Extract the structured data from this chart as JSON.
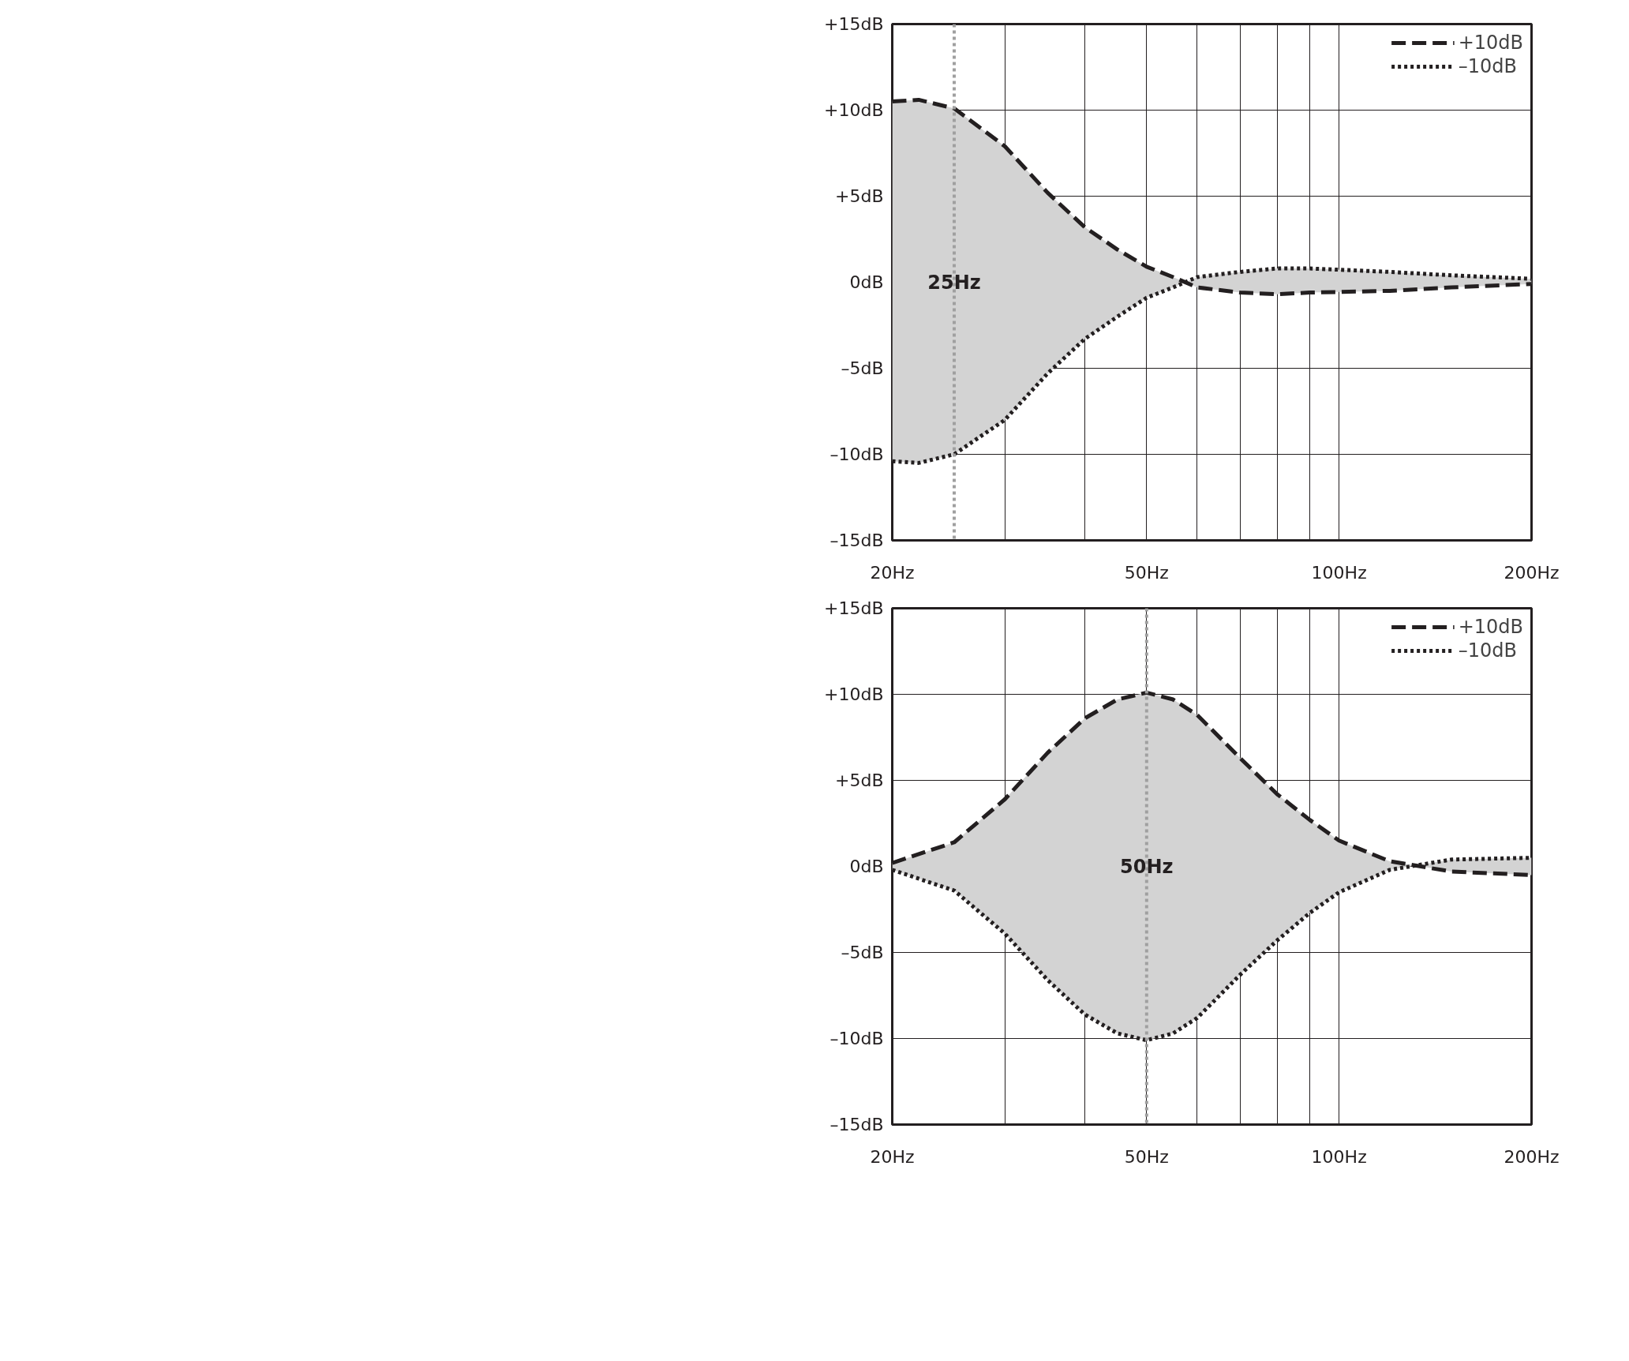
{
  "chart_data": [
    {
      "type": "line",
      "x": [
        20,
        22,
        25,
        30,
        35,
        40,
        45,
        50,
        55,
        60,
        70,
        80,
        90,
        120,
        150,
        200
      ],
      "series": [
        {
          "name": "+10dB",
          "color": "#231f20",
          "line_style": "dashed",
          "values": [
            10.5,
            10.6,
            10.1,
            7.9,
            5.2,
            3.2,
            1.9,
            0.9,
            0.3,
            -0.3,
            -0.6,
            -0.7,
            -0.6,
            -0.5,
            -0.3,
            -0.1
          ],
          "lower": [
            -10.4,
            -10.5,
            -10,
            -8,
            -5.3,
            -3.3,
            -2,
            -0.9,
            -0.3,
            0.3,
            0.6,
            0.8,
            0.8,
            0.6,
            0.4,
            0.2
          ],
          "upper": [
            10.5,
            10.6,
            10.1,
            7.9,
            5.2,
            3.2,
            1.9,
            0.9,
            0.3,
            -0.3,
            -0.6,
            -0.7,
            -0.6,
            -0.5,
            -0.3,
            -0.1
          ]
        },
        {
          "name": "–10dB",
          "color": "#231f20",
          "line_style": "dotted",
          "values": [
            -10.4,
            -10.5,
            -10,
            -8,
            -5.3,
            -3.3,
            -2,
            -0.9,
            -0.3,
            0.3,
            0.6,
            0.8,
            0.8,
            0.6,
            0.4,
            0.2
          ]
        }
      ],
      "log": "x",
      "xlim": [
        20,
        200
      ],
      "xticks": [
        {
          "value": 20,
          "label": "20Hz"
        },
        {
          "value": 30,
          "label": null
        },
        {
          "value": 40,
          "label": null
        },
        {
          "value": 50,
          "label": "50Hz"
        },
        {
          "value": 60,
          "label": null
        },
        {
          "value": 70,
          "label": null
        },
        {
          "value": 80,
          "label": null
        },
        {
          "value": 90,
          "label": null
        },
        {
          "value": 100,
          "label": "100Hz"
        },
        {
          "value": 200,
          "label": "200Hz"
        }
      ],
      "ylim": [
        -15,
        15
      ],
      "yticks": [
        {
          "value": 15,
          "label": "+15dB"
        },
        {
          "value": 10,
          "label": "+10dB"
        },
        {
          "value": 5,
          "label": "+5dB"
        },
        {
          "value": 0,
          "label": "0dB"
        },
        {
          "value": -5,
          "label": "–5dB"
        },
        {
          "value": -10,
          "label": "–10dB"
        },
        {
          "value": -15,
          "label": "–15dB"
        }
      ],
      "ref_lines": [
        {
          "axis": "x",
          "value": 25,
          "label": "25Hz",
          "color": "#a0a0a0",
          "line_style": "dotted"
        }
      ],
      "grid": true,
      "legend": "top right"
    },
    {
      "type": "line",
      "x": [
        20,
        25,
        30,
        35,
        40,
        45,
        50,
        55,
        60,
        70,
        80,
        90,
        100,
        120,
        150,
        200
      ],
      "series": [
        {
          "name": "+10dB",
          "color": "#231f20",
          "line_style": "dashed",
          "values": [
            0.2,
            1.4,
            3.9,
            6.6,
            8.6,
            9.7,
            10.1,
            9.7,
            8.8,
            6.3,
            4.2,
            2.7,
            1.5,
            0.3,
            -0.3,
            -0.5
          ],
          "lower": [
            -0.2,
            -1.4,
            -3.9,
            -6.6,
            -8.6,
            -9.7,
            -10.1,
            -9.7,
            -8.8,
            -6.3,
            -4.3,
            -2.7,
            -1.5,
            -0.2,
            0.4,
            0.5
          ],
          "upper": [
            0.2,
            1.4,
            3.9,
            6.6,
            8.6,
            9.7,
            10.1,
            9.7,
            8.8,
            6.3,
            4.2,
            2.7,
            1.5,
            0.3,
            -0.3,
            -0.5
          ]
        },
        {
          "name": "–10dB",
          "color": "#231f20",
          "line_style": "dotted",
          "values": [
            -0.2,
            -1.4,
            -3.9,
            -6.6,
            -8.6,
            -9.7,
            -10.1,
            -9.7,
            -8.8,
            -6.3,
            -4.3,
            -2.7,
            -1.5,
            -0.2,
            0.4,
            0.5
          ]
        }
      ],
      "log": "x",
      "xlim": [
        20,
        200
      ],
      "xticks": [
        {
          "value": 20,
          "label": "20Hz"
        },
        {
          "value": 30,
          "label": null
        },
        {
          "value": 40,
          "label": null
        },
        {
          "value": 50,
          "label": "50Hz"
        },
        {
          "value": 60,
          "label": null
        },
        {
          "value": 70,
          "label": null
        },
        {
          "value": 80,
          "label": null
        },
        {
          "value": 90,
          "label": null
        },
        {
          "value": 100,
          "label": "100Hz"
        },
        {
          "value": 200,
          "label": "200Hz"
        }
      ],
      "ylim": [
        -15,
        15
      ],
      "yticks": [
        {
          "value": 15,
          "label": "+15dB"
        },
        {
          "value": 10,
          "label": "+10dB"
        },
        {
          "value": 5,
          "label": "+5dB"
        },
        {
          "value": 0,
          "label": "0dB"
        },
        {
          "value": -5,
          "label": "–5dB"
        },
        {
          "value": -10,
          "label": "–10dB"
        },
        {
          "value": -15,
          "label": "–15dB"
        }
      ],
      "ref_lines": [
        {
          "axis": "x",
          "value": 50,
          "label": "50Hz",
          "color": "#a0a0a0",
          "line_style": "dotted"
        }
      ],
      "grid": true,
      "legend": "top right"
    }
  ]
}
